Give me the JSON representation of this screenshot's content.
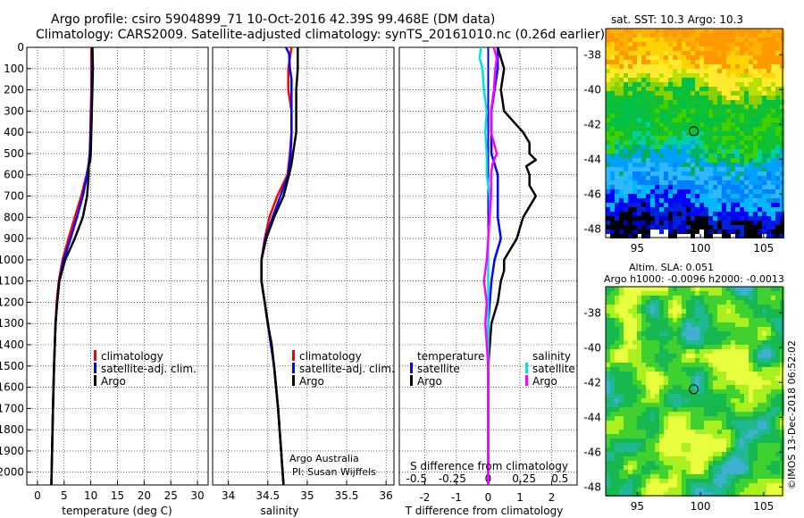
{
  "title_line1": "Argo profile: csiro 5904899_71 10-Oct-2016 42.39S 99.468E (DM data)",
  "title_line2": "Climatology: CARS2009. Satellite-adjusted climatology: synTS_20161010.nc (0.26d earlier)",
  "sst_title": "sat. SST: 10.3 Argo: 10.3",
  "sla_title1": "Altim. SLA: 0.051",
  "sla_title2": "Argo h1000: -0.0096 h2000: -0.0013",
  "credit": "©IMOS 13-Dec-2018 06:52:02",
  "argo_credit1": "Argo Australia",
  "argo_credit2": "PI: Susan Wijffels",
  "colors": {
    "climatology": "#ff0000",
    "satellite": "#0000ff",
    "argo": "#000000",
    "sat_s": "#00e0e0",
    "argo_s": "#ff00ff"
  },
  "chart_data": [
    {
      "type": "line",
      "xlabel": "temperature (deg C)",
      "ylabel": "",
      "xlim": [
        -2,
        32
      ],
      "ylim": [
        2060,
        0
      ],
      "xticks": [
        0,
        5,
        10,
        15,
        20,
        25,
        30
      ],
      "yticks": [
        0,
        100,
        200,
        300,
        400,
        500,
        600,
        700,
        800,
        900,
        1000,
        1100,
        1200,
        1300,
        1400,
        1500,
        1600,
        1700,
        1800,
        1900,
        2000
      ],
      "legend": [
        "climatology",
        "satellite-adj. clim.",
        "Argo"
      ],
      "series": [
        {
          "name": "climatology",
          "depth": [
            0,
            100,
            200,
            300,
            400,
            500,
            550,
            600,
            700,
            800,
            900,
            1000,
            1100,
            1200,
            1300,
            1500,
            1700,
            2060
          ],
          "values": [
            10.1,
            10.1,
            10.1,
            10.0,
            9.9,
            9.8,
            9.6,
            9.2,
            8.2,
            7.0,
            5.8,
            4.7,
            4.0,
            3.6,
            3.4,
            3.1,
            2.9,
            2.6
          ]
        },
        {
          "name": "satellite-adj. clim.",
          "depth": [
            0,
            100,
            200,
            300,
            400,
            500,
            550,
            600,
            700,
            800,
            900,
            1000,
            1100,
            1200,
            1300,
            1500,
            1700,
            2060
          ],
          "values": [
            10.3,
            10.3,
            10.2,
            10.1,
            10.0,
            9.8,
            9.6,
            9.3,
            8.5,
            7.4,
            6.2,
            4.9,
            4.1,
            3.7,
            3.4,
            3.1,
            2.9,
            2.6
          ]
        },
        {
          "name": "Argo",
          "depth": [
            0,
            100,
            200,
            300,
            400,
            500,
            530,
            560,
            600,
            700,
            800,
            900,
            1000,
            1100,
            1200,
            1300,
            1500,
            1700,
            2060
          ],
          "values": [
            10.3,
            10.4,
            10.3,
            10.2,
            10.1,
            10.0,
            9.9,
            9.6,
            9.6,
            9.3,
            8.5,
            7.0,
            5.2,
            4.1,
            3.7,
            3.4,
            3.1,
            2.9,
            2.6
          ]
        }
      ]
    },
    {
      "type": "line",
      "xlabel": "salinity",
      "xlim": [
        33.8,
        36.1
      ],
      "ylim": [
        2060,
        0
      ],
      "xticks": [
        34,
        34.5,
        35,
        35.5,
        36
      ],
      "legend": [
        "climatology",
        "satellite-adj. clim.",
        "Argo"
      ],
      "series": [
        {
          "name": "climatology",
          "depth": [
            0,
            100,
            200,
            300,
            400,
            500,
            600,
            700,
            800,
            900,
            1000,
            1100,
            1200,
            1300,
            1400,
            1500,
            1700,
            2060
          ],
          "values": [
            34.8,
            34.76,
            34.76,
            34.8,
            34.8,
            34.78,
            34.75,
            34.62,
            34.52,
            34.46,
            34.42,
            34.42,
            34.46,
            34.5,
            34.54,
            34.58,
            34.63,
            34.7
          ]
        },
        {
          "name": "satellite-adj. clim.",
          "depth": [
            0,
            30,
            100,
            150,
            200,
            300,
            400,
            500,
            600,
            700,
            800,
            900,
            1000,
            1100,
            1200,
            1300,
            1400,
            1500,
            1700,
            2060
          ],
          "values": [
            34.73,
            34.77,
            34.78,
            34.8,
            34.8,
            34.8,
            34.8,
            34.79,
            34.76,
            34.66,
            34.56,
            34.47,
            34.42,
            34.42,
            34.46,
            34.5,
            34.54,
            34.58,
            34.63,
            34.7
          ]
        },
        {
          "name": "Argo",
          "depth": [
            0,
            100,
            200,
            300,
            400,
            450,
            550,
            600,
            700,
            800,
            900,
            1000,
            1100,
            1200,
            1300,
            1340,
            1400,
            1500,
            1700,
            2060
          ],
          "values": [
            34.88,
            34.88,
            34.86,
            34.86,
            34.86,
            34.84,
            34.8,
            34.77,
            34.7,
            34.58,
            34.48,
            34.42,
            34.42,
            34.46,
            34.5,
            34.52,
            34.55,
            34.58,
            34.63,
            34.7
          ]
        }
      ],
      "annotation": [
        "Argo Australia",
        "PI: Susan Wijffels"
      ]
    },
    {
      "type": "line",
      "xlabel": "T difference from climatology",
      "xlabel_top": "S difference from climatology",
      "xlim": [
        -2.8,
        2.8
      ],
      "ylim": [
        2060,
        0
      ],
      "xticks": [
        -2,
        -1,
        0,
        1,
        2
      ],
      "xticks_s": [
        -0.5,
        -0.25,
        0,
        0.25,
        0.5
      ],
      "xticklabels_s": [
        "-0.5",
        "-0.25",
        "0",
        "0.25",
        "0.5"
      ],
      "legend_groups": {
        "temperature": [
          "satellite",
          "Argo"
        ],
        "salinity": [
          "satellite",
          "Argo"
        ]
      },
      "series": [
        {
          "name": "temperature satellite",
          "depth": [
            0,
            100,
            200,
            300,
            400,
            500,
            600,
            700,
            800,
            900,
            1000,
            1100,
            1200,
            1300,
            1400,
            1500,
            1700,
            2060
          ],
          "values": [
            0.3,
            0.3,
            0.2,
            0.1,
            0.1,
            0.1,
            0.3,
            0.3,
            0.3,
            0.4,
            0.2,
            0.1,
            0.05,
            0.0,
            0.0,
            0.0,
            0.0,
            0.0
          ]
        },
        {
          "name": "temperature Argo",
          "depth": [
            0,
            50,
            100,
            200,
            300,
            350,
            400,
            450,
            500,
            530,
            560,
            600,
            650,
            700,
            750,
            800,
            850,
            900,
            950,
            1000,
            1050,
            1100,
            1200,
            1300,
            1500,
            1700,
            2060
          ],
          "values": [
            0.3,
            0.4,
            0.5,
            0.4,
            0.5,
            0.8,
            1.1,
            1.3,
            1.3,
            1.5,
            1.2,
            1.3,
            1.3,
            1.5,
            1.3,
            1.1,
            1.0,
            0.9,
            0.7,
            0.5,
            0.5,
            0.4,
            0.3,
            0.1,
            0.0,
            0.0,
            0.0
          ]
        },
        {
          "name": "salinity satellite",
          "depth": [
            0,
            50,
            100,
            200,
            300,
            400,
            500,
            600,
            700,
            800,
            900,
            1000,
            1100,
            1200,
            1300,
            1500,
            1700,
            2060
          ],
          "values": [
            -0.05,
            -0.06,
            -0.04,
            -0.03,
            -0.01,
            -0.02,
            -0.01,
            -0.01,
            0.01,
            0.01,
            0.0,
            0.0,
            0.0,
            0.0,
            0.0,
            0.0,
            0.0,
            0.0
          ]
        },
        {
          "name": "salinity Argo",
          "depth": [
            0,
            50,
            100,
            200,
            300,
            400,
            500,
            550,
            600,
            700,
            800,
            900,
            1000,
            1100,
            1200,
            1300,
            1500,
            1700,
            2060
          ],
          "values": [
            0.04,
            0.06,
            0.05,
            0.04,
            0.02,
            0.02,
            0.06,
            0.03,
            0.02,
            0.02,
            0.01,
            0.0,
            -0.01,
            -0.03,
            -0.01,
            -0.02,
            0.0,
            0.0,
            0.0
          ]
        }
      ]
    },
    {
      "type": "heatmap",
      "title": "sat. SST: 10.3 Argo: 10.3",
      "xlim": [
        92.5,
        106.5
      ],
      "ylim": [
        -48.5,
        -36.5
      ],
      "xticks": [
        95,
        100,
        105
      ],
      "yticks": [
        -38,
        -40,
        -42,
        -44,
        -46,
        -48
      ],
      "marker": {
        "lon": 99.468,
        "lat": -42.39
      }
    },
    {
      "type": "heatmap",
      "title": "Altim. SLA: 0.051",
      "xlim": [
        92.5,
        106.5
      ],
      "ylim": [
        -48.5,
        -36.5
      ],
      "xticks": [
        95,
        100,
        105
      ],
      "yticks": [
        -38,
        -40,
        -42,
        -44,
        -46,
        -48
      ],
      "marker": {
        "lon": 99.468,
        "lat": -42.39
      }
    }
  ]
}
